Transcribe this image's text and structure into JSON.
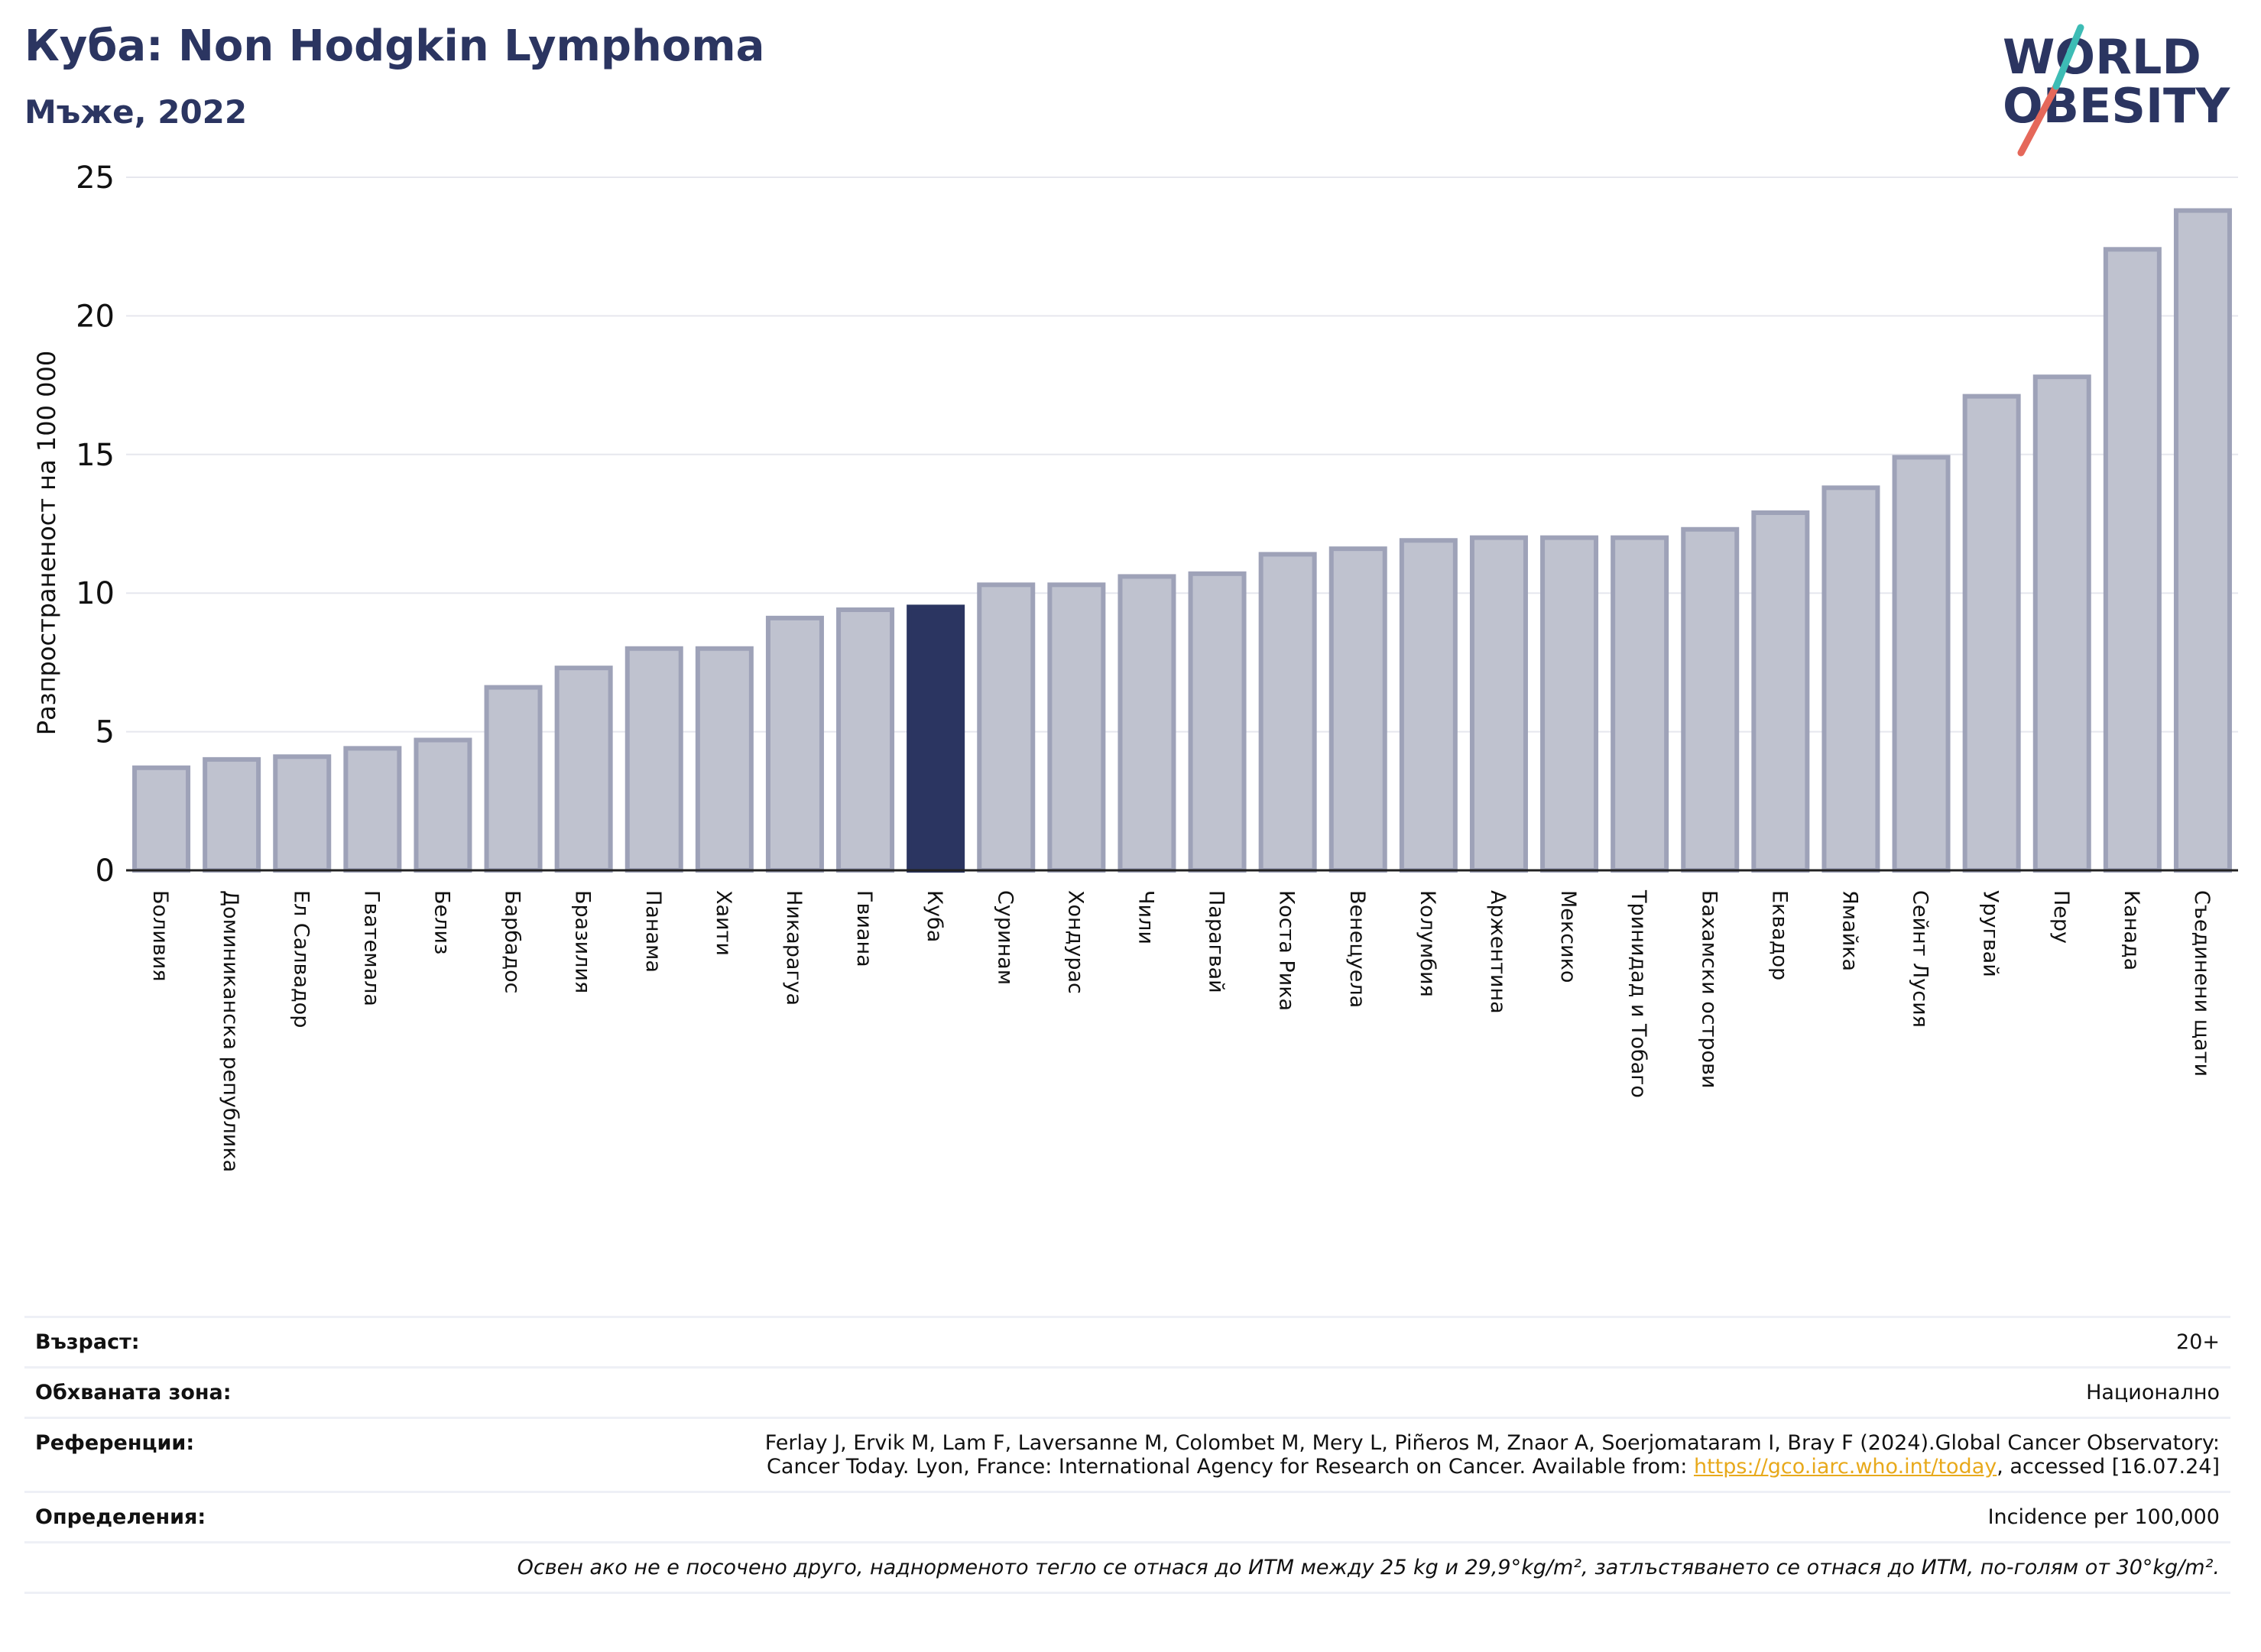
{
  "title": "Куба: Non Hodgkin Lymphoma",
  "subtitle": "Мъже, 2022",
  "logo": {
    "line1": "WORLD",
    "line2": "OBESITY",
    "colors": {
      "text": "#2b3561",
      "slash_orange": "#e5685a",
      "slash_teal": "#3dbcb5"
    }
  },
  "colors": {
    "bar": "#bfc2cf",
    "bar_edge": "#9ea2b8",
    "highlight": "#2b3561",
    "axis": "#222222",
    "grid": "#e6e7ee"
  },
  "chart_data": {
    "type": "bar",
    "title": "Куба: Non Hodgkin Lymphoma",
    "subtitle": "Мъже, 2022",
    "ylabel": "Разпространеност  на 100 000",
    "xlabel": "",
    "ylim": [
      0,
      25
    ],
    "yticks": [
      0,
      5,
      10,
      15,
      20,
      25
    ],
    "grid": true,
    "highlight": "Куба",
    "categories": [
      "Боливия",
      "Доминиканска република",
      "Ел Салвадор",
      "Гватемала",
      "Белиз",
      "Барбадос",
      "Бразилия",
      "Панама",
      "Хаити",
      "Никарагуа",
      "Гвиана",
      "Куба",
      "Суринам",
      "Хондурас",
      "Чили",
      "Парагвай",
      "Коста Рика",
      "Венецуела",
      "Колумбия",
      "Аржентина",
      "Мексико",
      "Тринидад и Тобаго",
      "Бахамски острови",
      "Еквадор",
      "Ямайка",
      "Сейнт Лусия",
      "Уругвай",
      "Перу",
      "Канада",
      "Съединени щати"
    ],
    "values": [
      3.7,
      4.0,
      4.1,
      4.4,
      4.7,
      6.6,
      7.3,
      8.0,
      8.0,
      9.1,
      9.4,
      9.5,
      10.3,
      10.3,
      10.6,
      10.7,
      11.4,
      11.6,
      11.9,
      12.0,
      12.0,
      12.0,
      12.3,
      12.9,
      13.8,
      14.9,
      17.1,
      17.8,
      22.4,
      23.8
    ]
  },
  "meta": {
    "age_label": "Възраст:",
    "age_value": "20+",
    "coverage_label": "Обхваната зона:",
    "coverage_value": "Национално",
    "references_label": "Референции:",
    "references_line1": "Ferlay J, Ervik M, Lam F, Laversanne M, Colombet M, Mery L, Piñeros M, Znaor A, Soerjomataram I, Bray F (2024).Global Cancer Observatory:",
    "references_line2_pre": "Cancer Today. Lyon, France: International Agency for Research on Cancer. Available from: ",
    "references_link": "https://gco.iarc.who.int/today",
    "references_line2_post": ", accessed [16.07.24]",
    "definitions_label": "Определения:",
    "definitions_value": "Incidence per 100,000",
    "note": "Освен ако не е посочено друго, наднорменото тегло се отнася до ИТМ между 25 kg и 29,9°kg/m², затлъстяването се отнася до ИТМ, по-голям от 30°kg/m²."
  }
}
